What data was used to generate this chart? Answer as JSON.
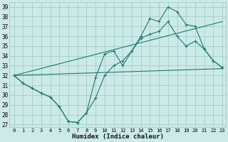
{
  "xlabel": "Humidex (Indice chaleur)",
  "bg_color": "#cceae8",
  "grid_color": "#a0ceca",
  "line_color": "#1e7a6e",
  "xlim_min": -0.5,
  "xlim_max": 23.4,
  "ylim_min": 26.7,
  "ylim_max": 39.5,
  "xticks": [
    0,
    1,
    2,
    3,
    4,
    5,
    6,
    7,
    8,
    9,
    10,
    11,
    12,
    13,
    14,
    15,
    16,
    17,
    18,
    19,
    20,
    21,
    22,
    23
  ],
  "yticks": [
    27,
    28,
    29,
    30,
    31,
    32,
    33,
    34,
    35,
    36,
    37,
    38,
    39
  ],
  "line1_y": [
    32.0,
    31.2,
    30.7,
    30.2,
    29.8,
    28.8,
    27.3,
    27.2,
    28.2,
    29.7,
    32.0,
    33.0,
    33.5,
    34.5,
    36.0,
    37.8,
    37.5,
    39.0,
    38.5,
    37.2,
    37.0,
    34.7,
    33.5,
    32.8
  ],
  "line2_y": [
    32.0,
    31.2,
    30.7,
    30.2,
    29.8,
    28.8,
    27.3,
    27.2,
    28.2,
    31.8,
    34.2,
    34.5,
    33.0,
    34.5,
    35.8,
    36.2,
    36.5,
    37.5,
    36.0,
    35.0,
    35.5,
    34.7,
    33.5,
    32.8
  ],
  "line3_x": [
    0,
    23
  ],
  "line3_y": [
    32.0,
    32.7
  ],
  "line4_x": [
    0,
    23
  ],
  "line4_y": [
    32.0,
    37.5
  ]
}
